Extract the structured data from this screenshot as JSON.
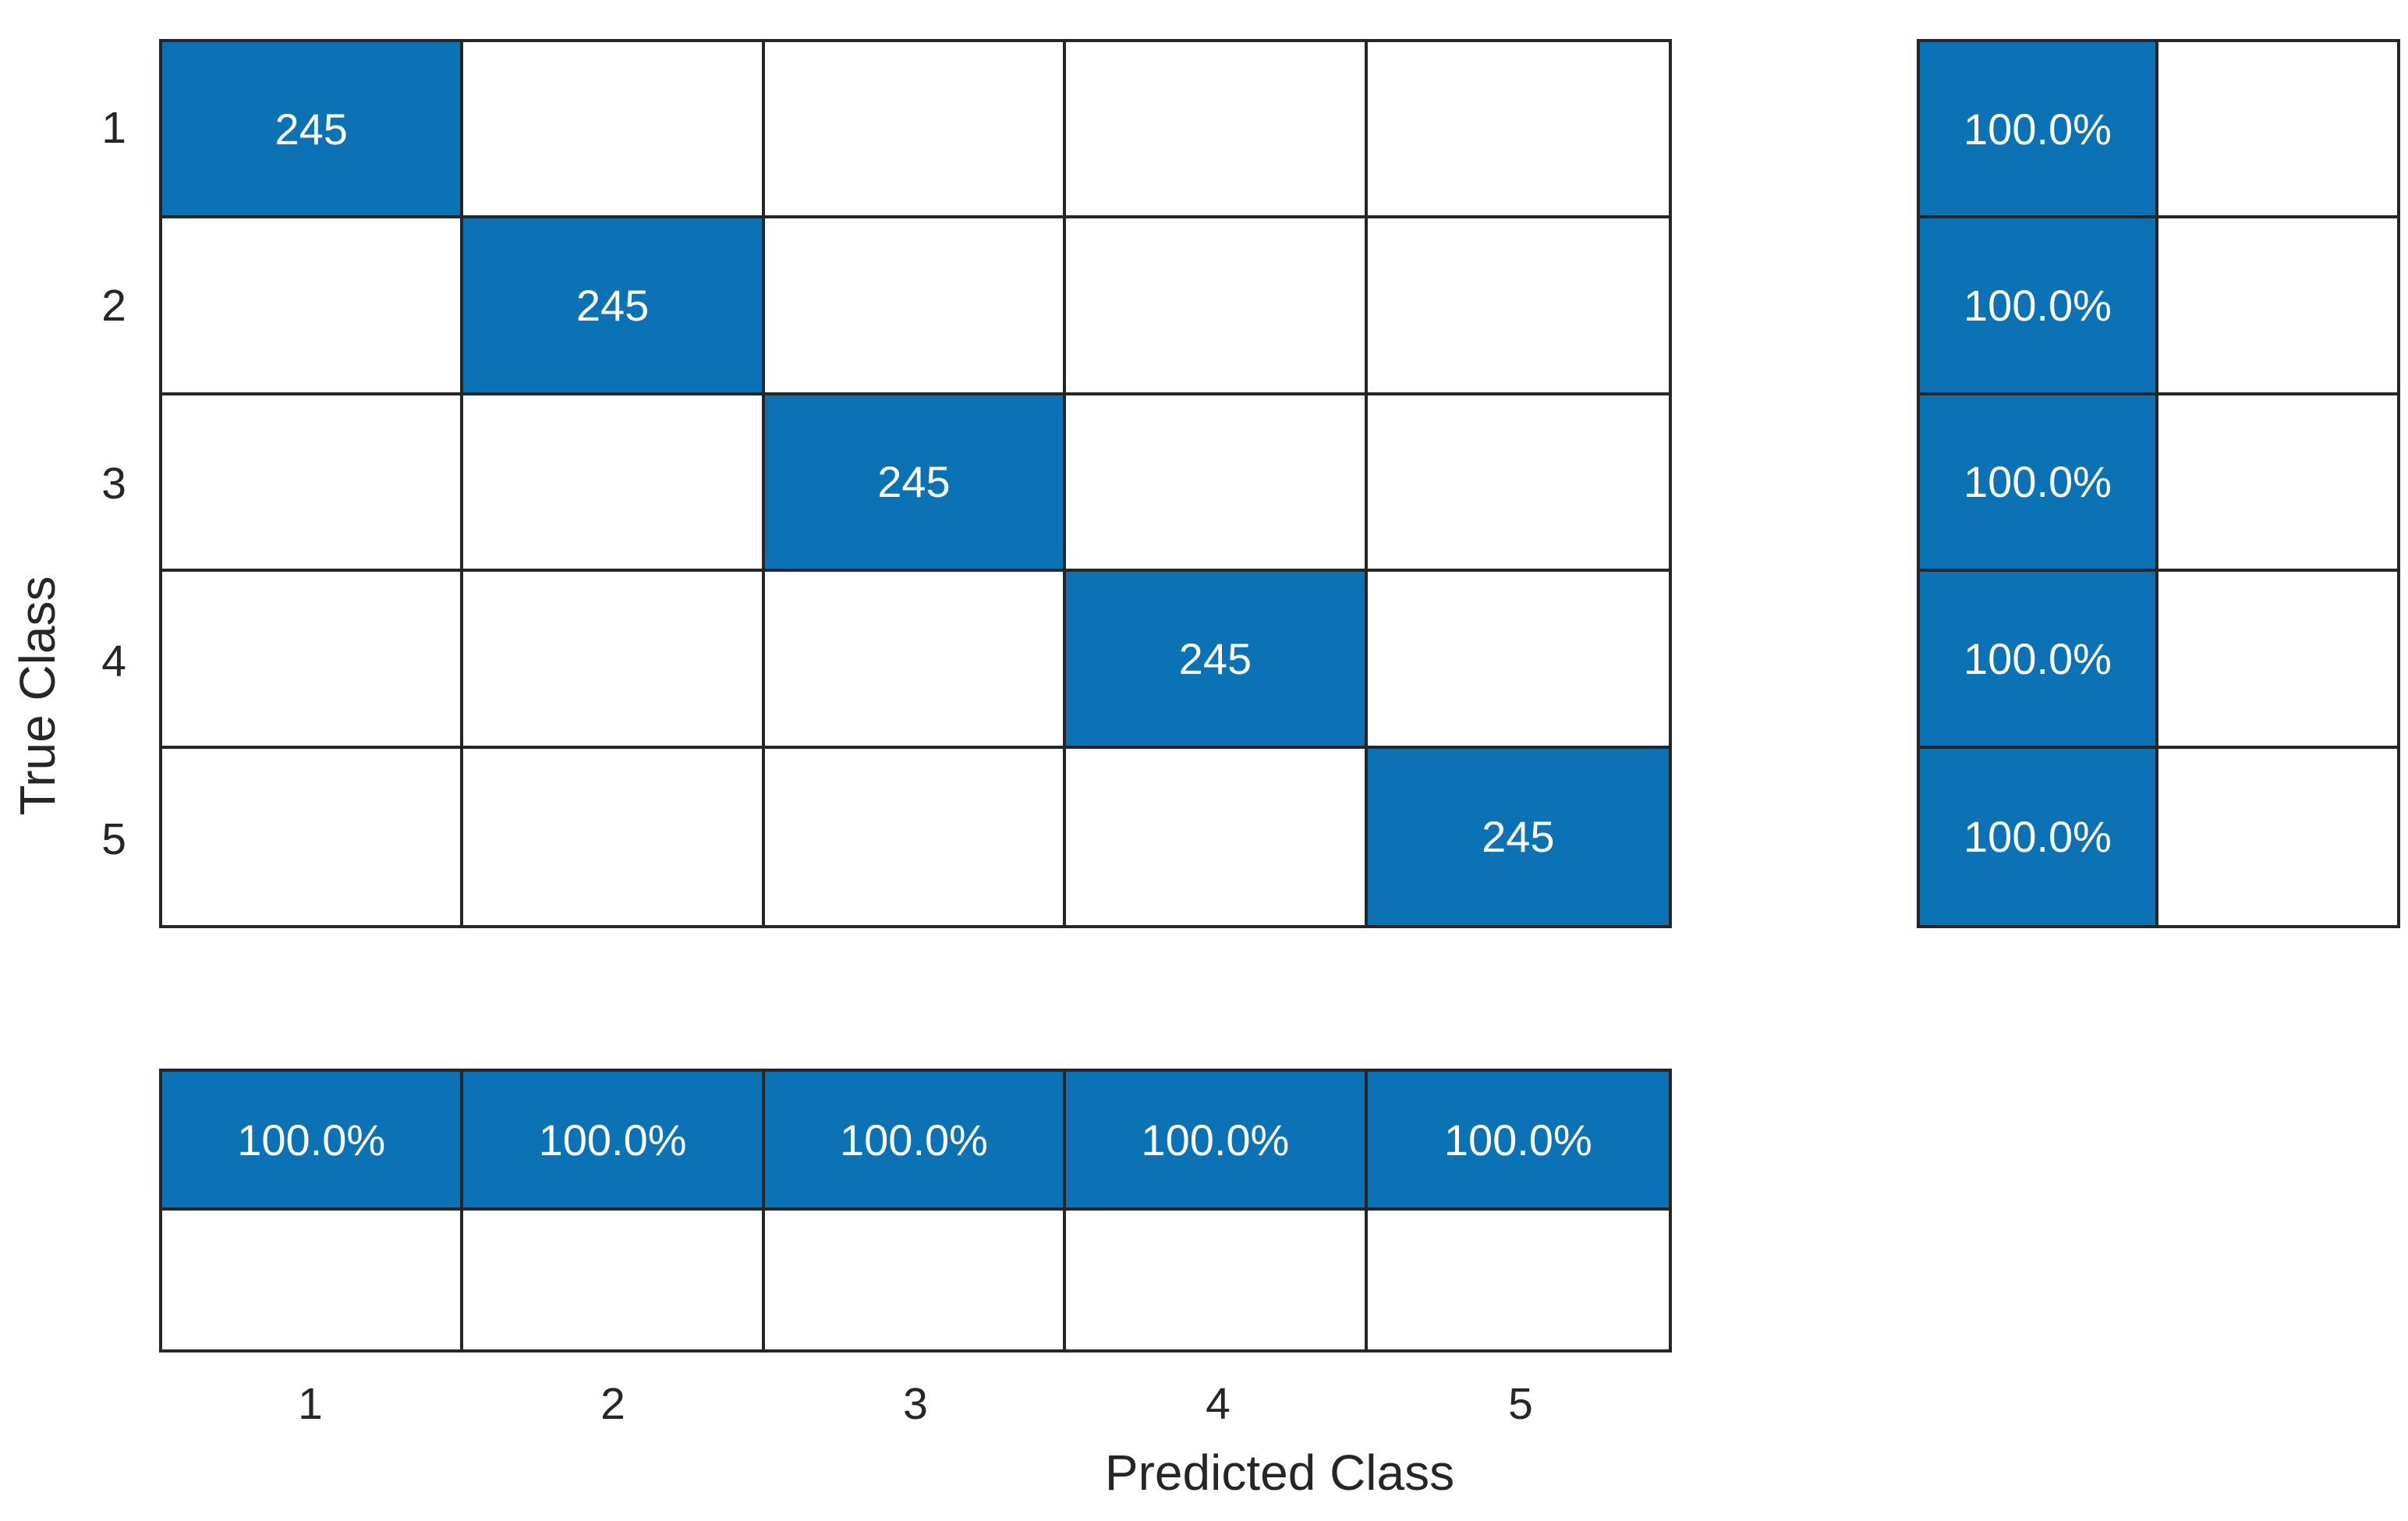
{
  "chart_data": {
    "type": "heatmap",
    "subtype": "confusion-matrix",
    "title": "",
    "xlabel": "Predicted Class",
    "ylabel": "True Class",
    "x_tick_labels": [
      "1",
      "2",
      "3",
      "4",
      "5"
    ],
    "y_tick_labels": [
      "1",
      "2",
      "3",
      "4",
      "5"
    ],
    "matrix": [
      [
        245,
        0,
        0,
        0,
        0
      ],
      [
        0,
        245,
        0,
        0,
        0
      ],
      [
        0,
        0,
        245,
        0,
        0
      ],
      [
        0,
        0,
        0,
        245,
        0
      ],
      [
        0,
        0,
        0,
        0,
        245
      ]
    ],
    "cell_display": [
      [
        "245",
        "",
        "",
        "",
        ""
      ],
      [
        "",
        "245",
        "",
        "",
        ""
      ],
      [
        "",
        "",
        "245",
        "",
        ""
      ],
      [
        "",
        "",
        "",
        "245",
        ""
      ],
      [
        "",
        "",
        "",
        "",
        "245"
      ]
    ],
    "row_summary": [
      [
        "100.0%",
        ""
      ],
      [
        "100.0%",
        ""
      ],
      [
        "100.0%",
        ""
      ],
      [
        "100.0%",
        ""
      ],
      [
        "100.0%",
        ""
      ]
    ],
    "column_summary": [
      [
        "100.0%",
        "100.0%",
        "100.0%",
        "100.0%",
        "100.0%"
      ],
      [
        "",
        "",
        "",
        "",
        ""
      ]
    ],
    "legend": "none",
    "grid": true,
    "colors": {
      "diagonal_fill": "#0b72b6",
      "empty_fill": "#ffffff",
      "cell_text": "#ffffff",
      "grid_line": "#262626",
      "tick_text": "#262626"
    }
  }
}
